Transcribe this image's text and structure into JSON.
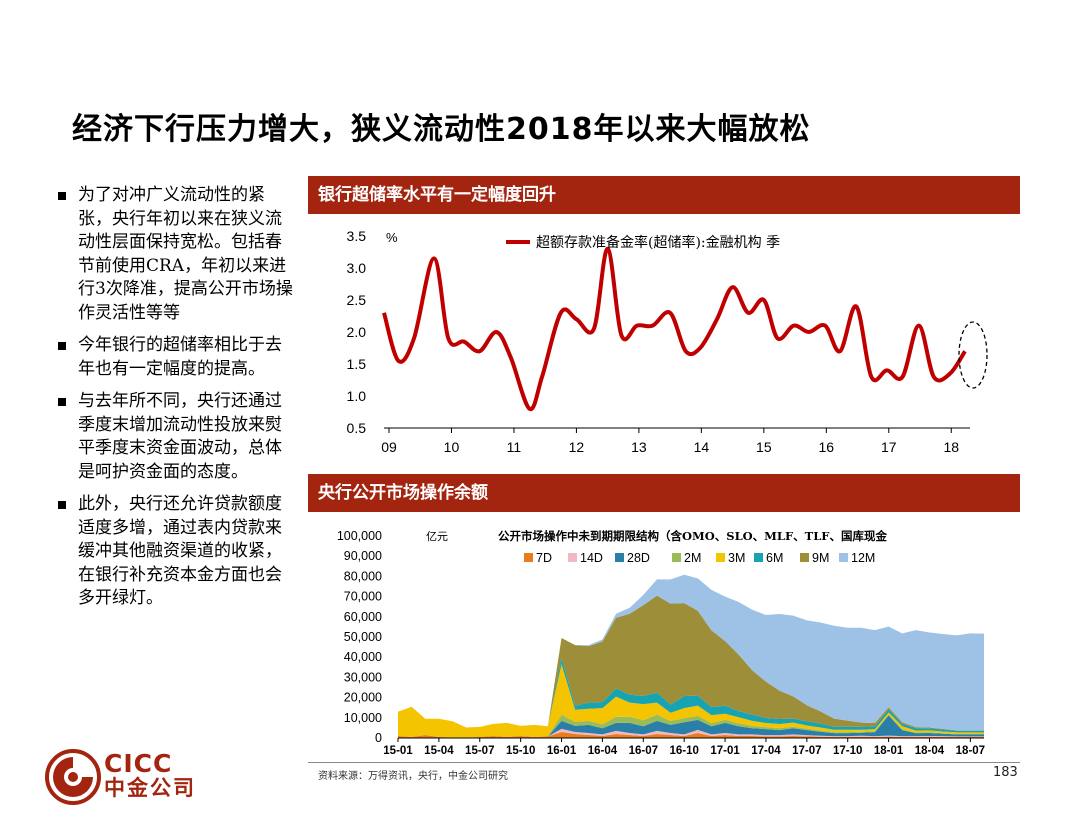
{
  "title": "经济下行压力增大，狭义流动性2018年以来大幅放松",
  "bullets": [
    "为了对冲广义流动性的紧张，央行年初以来在狭义流动性层面保持宽松。包括春节前使用CRA，年初以来进行3次降准，提高公开市场操作灵活性等等",
    "今年银行的超储率相比于去年也有一定幅度的提高。",
    "与去年所不同，央行还通过季度末增加流动性投放来熨平季度末资金面波动，总体是呵护资金面的态度。",
    "此外，央行还允许贷款额度适度多增，通过表内贷款来缓冲其他融资渠道的收紧，在银行补充资本金方面也会多开绿灯。"
  ],
  "panel1_title": "银行超储率水平有一定幅度回升",
  "panel2_title": "央行公开市场操作余额",
  "source": "资料来源：万得资讯，央行，中金公司研究",
  "page_number": "183",
  "logo": {
    "en": "CICC",
    "cn": "中金公司"
  },
  "colors": {
    "brand": "#a3240f",
    "line": "#c00000"
  },
  "chart_data": [
    {
      "type": "line",
      "unit_label": "%",
      "ylim": [
        0.5,
        3.5
      ],
      "yticks": [
        "0.5",
        "1.0",
        "1.5",
        "2.0",
        "2.5",
        "3.0",
        "3.5"
      ],
      "xlim": [
        2009,
        2018.3
      ],
      "xticks": [
        {
          "v": 2009,
          "label": "09"
        },
        {
          "v": 2010,
          "label": "10"
        },
        {
          "v": 2011,
          "label": "11"
        },
        {
          "v": 2012,
          "label": "12"
        },
        {
          "v": 2013,
          "label": "13"
        },
        {
          "v": 2014,
          "label": "14"
        },
        {
          "v": 2015,
          "label": "15"
        },
        {
          "v": 2016,
          "label": "16"
        },
        {
          "v": 2017,
          "label": "17"
        },
        {
          "v": 2018,
          "label": "18"
        }
      ],
      "series": [
        {
          "name": "超额存款准备金率(超储率):金融机构 季",
          "x": [
            2008.92,
            2009.15,
            2009.4,
            2009.72,
            2009.95,
            2010.2,
            2010.45,
            2010.72,
            2010.95,
            2011.25,
            2011.45,
            2011.75,
            2012.0,
            2012.28,
            2012.5,
            2012.72,
            2012.97,
            2013.22,
            2013.5,
            2013.75,
            2013.98,
            2014.25,
            2014.5,
            2014.75,
            2015.0,
            2015.22,
            2015.48,
            2015.72,
            2015.98,
            2016.22,
            2016.48,
            2016.72,
            2016.97,
            2017.22,
            2017.48,
            2017.72,
            2017.98,
            2018.22
          ],
          "y": [
            2.3,
            1.55,
            1.9,
            3.15,
            1.9,
            1.85,
            1.7,
            2.0,
            1.6,
            0.8,
            1.3,
            2.3,
            2.2,
            2.05,
            3.3,
            1.95,
            2.1,
            2.1,
            2.3,
            1.7,
            1.75,
            2.2,
            2.7,
            2.3,
            2.5,
            1.9,
            2.1,
            2.0,
            2.1,
            1.7,
            2.4,
            1.3,
            1.4,
            1.3,
            2.1,
            1.3,
            1.35,
            1.7
          ]
        }
      ]
    },
    {
      "type": "area",
      "stacked": true,
      "title": "公开市场操作中未到期期限结构（含OMO、SLO、MLF、TLF、国库现金",
      "unit_label": "亿元",
      "ylim": [
        0,
        100000
      ],
      "yticks": [
        "0",
        "10,000",
        "20,000",
        "30,000",
        "40,000",
        "50,000",
        "60,000",
        "70,000",
        "80,000",
        "90,000",
        "100,000"
      ],
      "xlim": [
        0,
        43
      ],
      "xticks": [
        {
          "v": 0,
          "label": "15-01"
        },
        {
          "v": 3,
          "label": "15-04"
        },
        {
          "v": 6,
          "label": "15-07"
        },
        {
          "v": 9,
          "label": "15-10"
        },
        {
          "v": 12,
          "label": "16-01"
        },
        {
          "v": 15,
          "label": "16-04"
        },
        {
          "v": 18,
          "label": "16-07"
        },
        {
          "v": 21,
          "label": "16-10"
        },
        {
          "v": 24,
          "label": "17-01"
        },
        {
          "v": 27,
          "label": "17-04"
        },
        {
          "v": 30,
          "label": "17-07"
        },
        {
          "v": 33,
          "label": "17-10"
        },
        {
          "v": 36,
          "label": "18-01"
        },
        {
          "v": 39,
          "label": "18-04"
        },
        {
          "v": 42,
          "label": "18-07"
        }
      ],
      "x": [
        0,
        1,
        2,
        3,
        4,
        5,
        6,
        7,
        8,
        9,
        10,
        11,
        12,
        13,
        14,
        15,
        16,
        17,
        18,
        19,
        20,
        21,
        22,
        23,
        24,
        25,
        26,
        27,
        28,
        29,
        30,
        31,
        32,
        33,
        34,
        35,
        36,
        37,
        38,
        39,
        40,
        41,
        42,
        43
      ],
      "series": [
        {
          "name": "7D",
          "color": "#e87d1e",
          "values": [
            1000,
            500,
            1500,
            500,
            300,
            200,
            500,
            1000,
            500,
            1000,
            500,
            800,
            3000,
            2000,
            1500,
            1000,
            2000,
            1500,
            1000,
            2000,
            1500,
            1000,
            2500,
            1000,
            1500,
            1000,
            1000,
            800,
            800,
            1000,
            800,
            600,
            500,
            500,
            600,
            500,
            700,
            500,
            500,
            600,
            500,
            500,
            500,
            500
          ]
        },
        {
          "name": "14D",
          "color": "#f2b8c6",
          "values": [
            0,
            0,
            0,
            0,
            0,
            0,
            0,
            0,
            0,
            0,
            0,
            0,
            1500,
            1000,
            1000,
            800,
            1500,
            1000,
            800,
            1500,
            1000,
            800,
            1500,
            800,
            1000,
            800,
            800,
            600,
            600,
            800,
            600,
            500,
            400,
            400,
            500,
            400,
            500,
            400,
            400,
            400,
            400,
            300,
            300,
            300
          ]
        },
        {
          "name": "28D",
          "color": "#2a7fa8",
          "values": [
            0,
            0,
            0,
            0,
            0,
            0,
            0,
            0,
            0,
            0,
            0,
            0,
            4000,
            3000,
            4000,
            3000,
            4000,
            5000,
            4000,
            5000,
            4000,
            6000,
            5000,
            4000,
            5000,
            4000,
            3000,
            3000,
            2500,
            3000,
            2500,
            2000,
            1500,
            1500,
            1500,
            2000,
            10000,
            3000,
            1500,
            1500,
            1200,
            1000,
            1000,
            1000
          ]
        },
        {
          "name": "2M",
          "color": "#9bbb59",
          "values": [
            0,
            0,
            0,
            0,
            0,
            0,
            0,
            0,
            0,
            0,
            0,
            0,
            3000,
            2000,
            2000,
            2000,
            3000,
            3000,
            3000,
            3000,
            2000,
            2000,
            2000,
            1500,
            1500,
            1500,
            1200,
            1000,
            1000,
            800,
            800,
            600,
            500,
            500,
            500,
            500,
            500,
            400,
            300,
            300,
            300,
            200,
            200,
            200
          ]
        },
        {
          "name": "3M",
          "color": "#f5c400",
          "values": [
            12000,
            15000,
            8000,
            9000,
            8000,
            5000,
            5000,
            6000,
            7000,
            5000,
            6000,
            5000,
            25000,
            6000,
            6000,
            8000,
            10000,
            7000,
            8000,
            6000,
            4000,
            5000,
            5000,
            4000,
            3000,
            3000,
            2500,
            2000,
            2000,
            2000,
            1500,
            1500,
            1200,
            1200,
            1000,
            1000,
            1000,
            1500,
            1000,
            1000,
            800,
            800,
            800,
            800
          ]
        },
        {
          "name": "6M",
          "color": "#17a3b1",
          "values": [
            0,
            0,
            0,
            0,
            0,
            0,
            0,
            0,
            0,
            0,
            0,
            0,
            3000,
            2000,
            3000,
            3000,
            4000,
            4000,
            4000,
            5000,
            4000,
            6000,
            5000,
            4000,
            4000,
            3000,
            3000,
            2500,
            2500,
            2000,
            2000,
            2000,
            1500,
            1500,
            1500,
            1500,
            1500,
            1200,
            1200,
            1000,
            1000,
            800,
            800,
            800
          ]
        },
        {
          "name": "9M",
          "color": "#9d8e3a",
          "values": [
            0,
            0,
            0,
            0,
            0,
            0,
            0,
            0,
            0,
            0,
            0,
            0,
            10000,
            30000,
            28000,
            30000,
            35000,
            40000,
            45000,
            48000,
            50000,
            46000,
            42000,
            38000,
            32000,
            28000,
            22000,
            18000,
            14000,
            11000,
            8000,
            6000,
            4000,
            3000,
            2000,
            1500,
            1000,
            800,
            500,
            400,
            300,
            200,
            200,
            100
          ]
        },
        {
          "name": "12M",
          "color": "#9ec2e6",
          "values": [
            0,
            0,
            0,
            0,
            0,
            0,
            0,
            0,
            0,
            0,
            0,
            0,
            0,
            0,
            500,
            1000,
            2000,
            3000,
            5000,
            8000,
            12000,
            14000,
            16000,
            20000,
            22000,
            26000,
            30000,
            33000,
            38000,
            40000,
            42000,
            44000,
            46000,
            46000,
            47000,
            46000,
            40000,
            44000,
            48000,
            47000,
            47000,
            47000,
            48000,
            48000
          ]
        }
      ]
    }
  ]
}
